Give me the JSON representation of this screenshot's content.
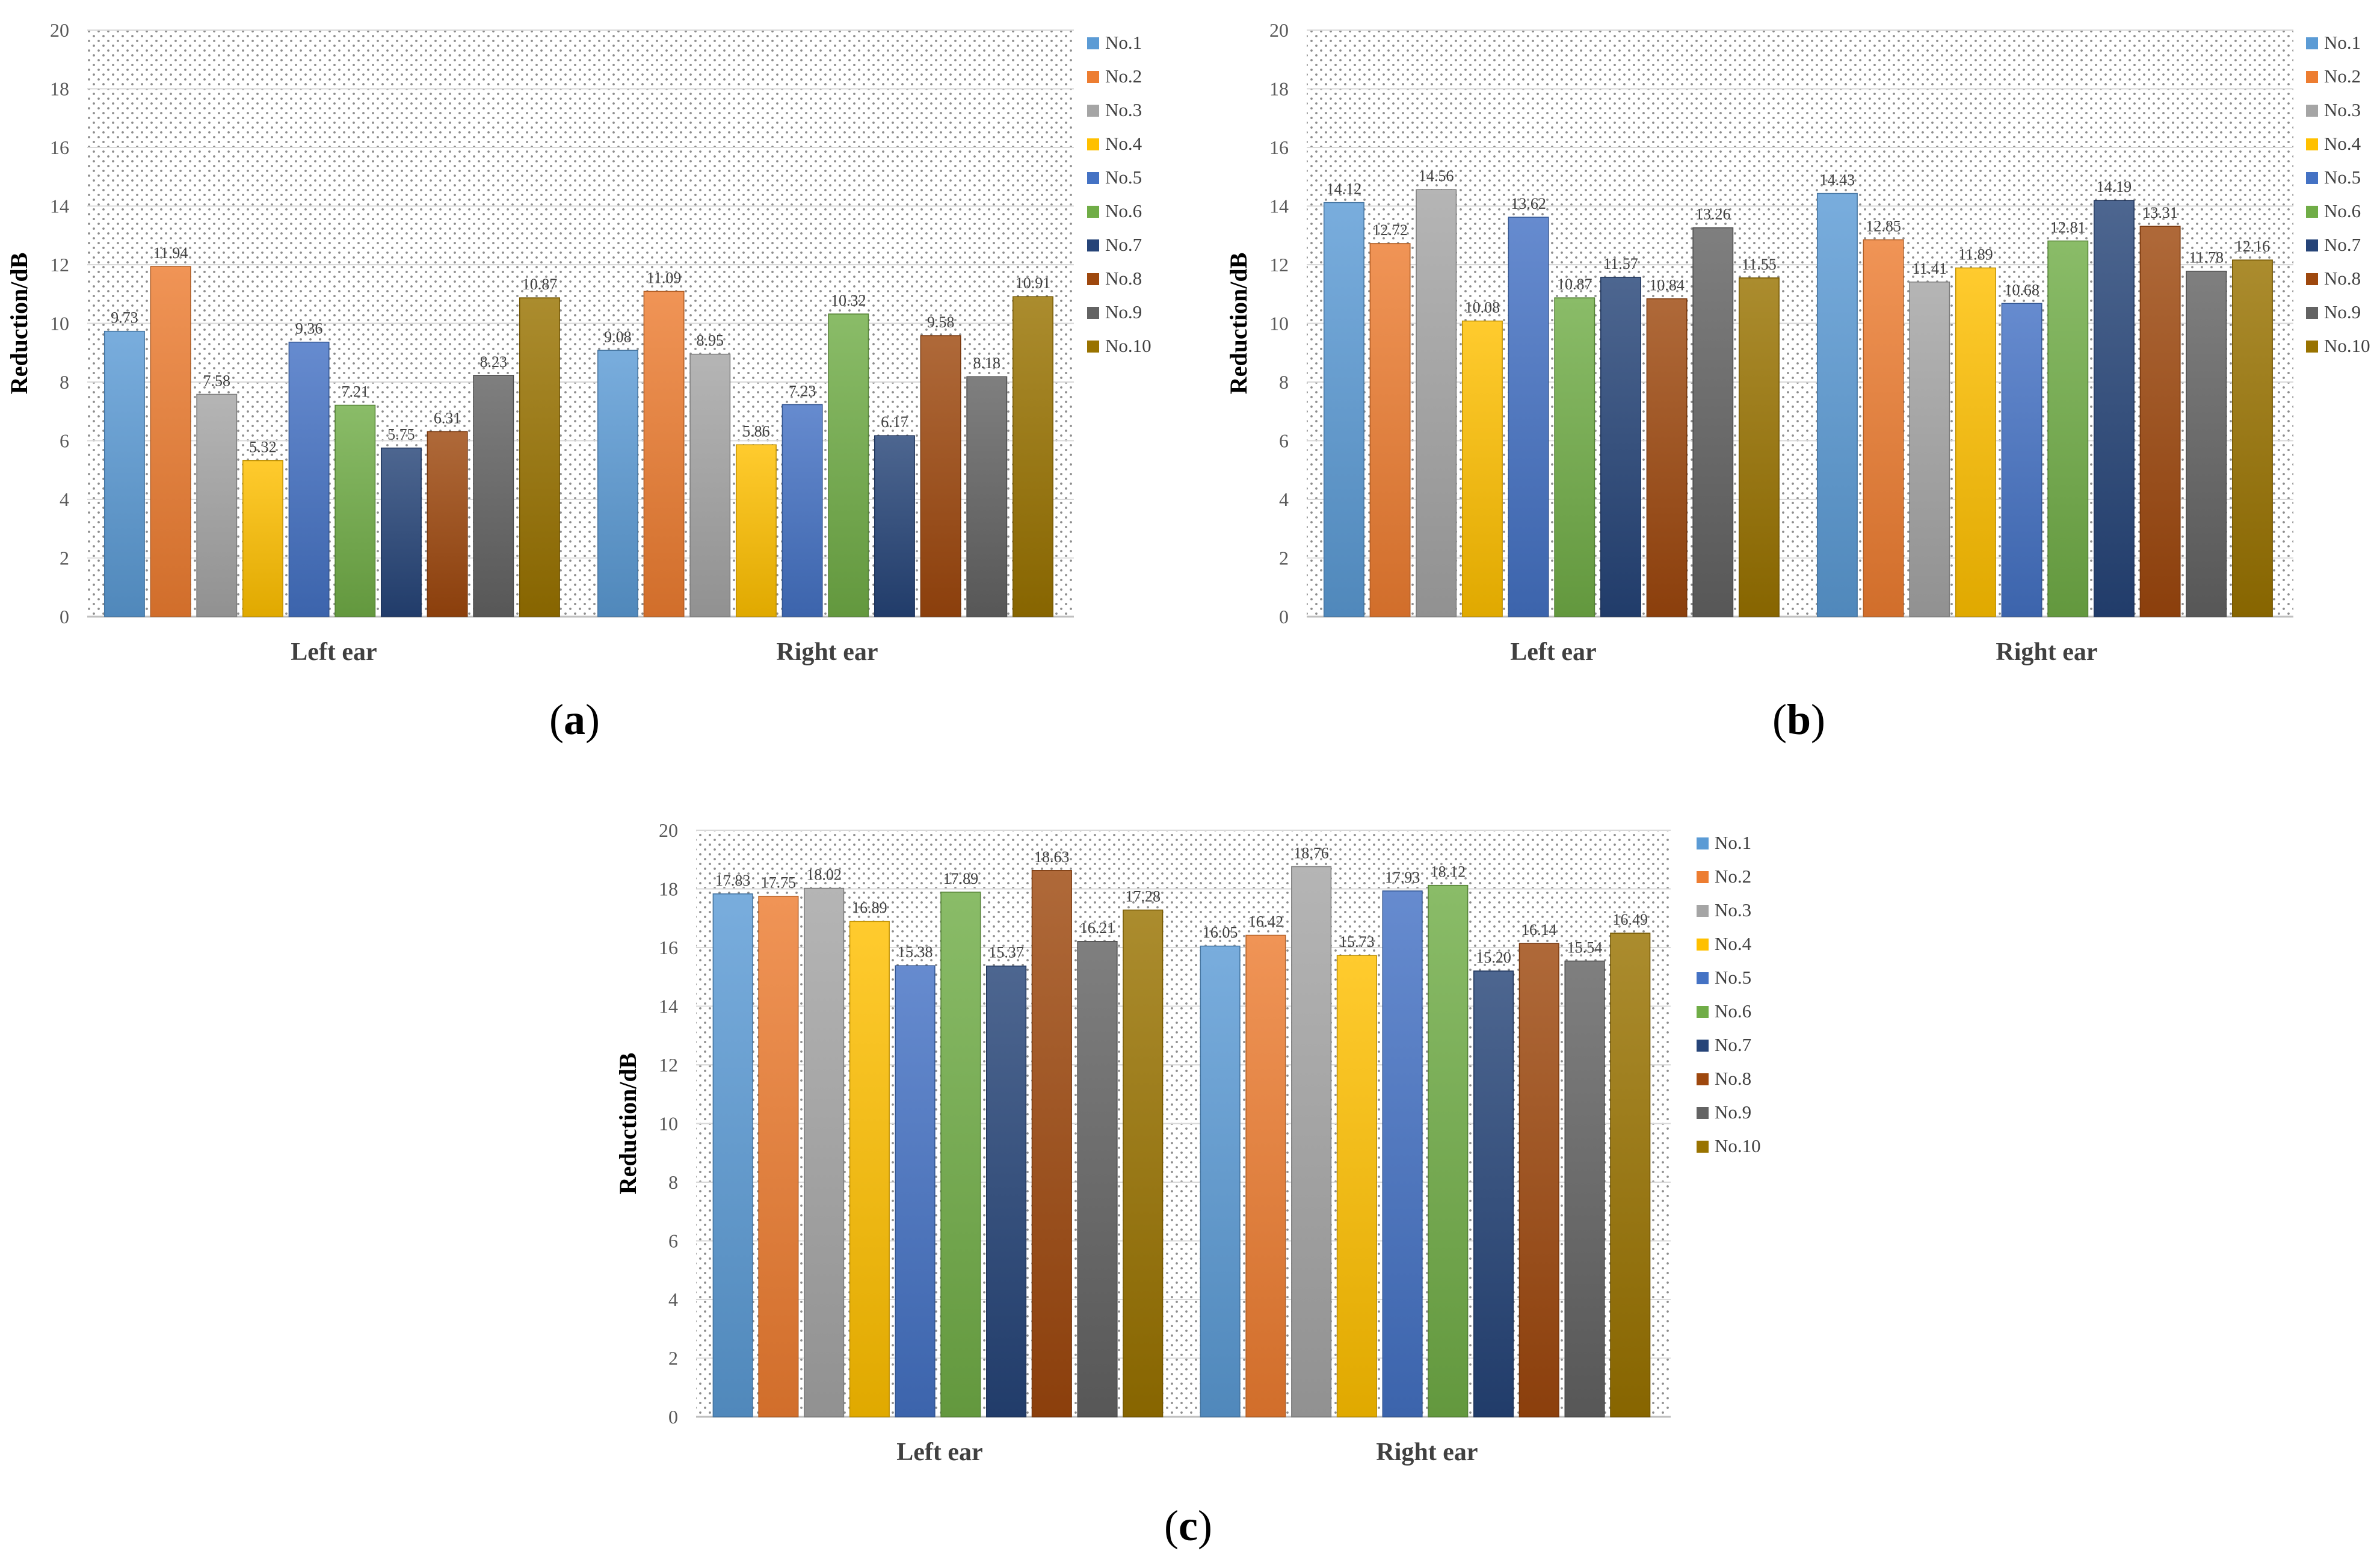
{
  "series_names": [
    "No.1",
    "No.2",
    "No.3",
    "No.4",
    "No.5",
    "No.6",
    "No.7",
    "No.8",
    "No.9",
    "No.10"
  ],
  "colors": [
    "#5b9bd5",
    "#ed7d31",
    "#a5a5a5",
    "#ffc000",
    "#4472c4",
    "#70ad47",
    "#264478",
    "#9e480e",
    "#636363",
    "#997300"
  ],
  "chart_data": [
    {
      "type": "bar",
      "panel_label": "a",
      "categories": [
        "Left ear",
        "Right ear"
      ],
      "ylabel": "Reduction/dB",
      "ylim": [
        0,
        20
      ],
      "yticks": [
        0,
        2,
        4,
        6,
        8,
        10,
        12,
        14,
        16,
        18,
        20
      ],
      "legend": "right",
      "series": [
        {
          "name": "No.1",
          "values": [
            9.73,
            9.08
          ]
        },
        {
          "name": "No.2",
          "values": [
            11.94,
            11.09
          ]
        },
        {
          "name": "No.3",
          "values": [
            7.58,
            8.95
          ]
        },
        {
          "name": "No.4",
          "values": [
            5.32,
            5.86
          ]
        },
        {
          "name": "No.5",
          "values": [
            9.36,
            7.23
          ]
        },
        {
          "name": "No.6",
          "values": [
            7.21,
            10.32
          ]
        },
        {
          "name": "No.7",
          "values": [
            5.75,
            6.17
          ]
        },
        {
          "name": "No.8",
          "values": [
            6.31,
            9.58
          ]
        },
        {
          "name": "No.9",
          "values": [
            8.23,
            8.18
          ]
        },
        {
          "name": "No.10",
          "values": [
            10.87,
            10.91
          ]
        }
      ]
    },
    {
      "type": "bar",
      "panel_label": "b",
      "categories": [
        "Left ear",
        "Right ear"
      ],
      "ylabel": "Reduction/dB",
      "ylim": [
        0,
        20
      ],
      "yticks": [
        0,
        2,
        4,
        6,
        8,
        10,
        12,
        14,
        16,
        18,
        20
      ],
      "legend": "right",
      "series": [
        {
          "name": "No.1",
          "values": [
            14.12,
            14.43
          ]
        },
        {
          "name": "No.2",
          "values": [
            12.72,
            12.85
          ]
        },
        {
          "name": "No.3",
          "values": [
            14.56,
            11.41
          ]
        },
        {
          "name": "No.4",
          "values": [
            10.08,
            11.89
          ]
        },
        {
          "name": "No.5",
          "values": [
            13.62,
            10.68
          ]
        },
        {
          "name": "No.6",
          "values": [
            10.87,
            12.81
          ]
        },
        {
          "name": "No.7",
          "values": [
            11.57,
            14.19
          ]
        },
        {
          "name": "No.8",
          "values": [
            10.84,
            13.31
          ]
        },
        {
          "name": "No.9",
          "values": [
            13.26,
            11.78
          ]
        },
        {
          "name": "No.10",
          "values": [
            11.55,
            12.16
          ]
        }
      ]
    },
    {
      "type": "bar",
      "panel_label": "c",
      "categories": [
        "Left ear",
        "Right ear"
      ],
      "ylabel": "Reduction/dB",
      "ylim": [
        0,
        20
      ],
      "yticks": [
        0,
        2,
        4,
        6,
        8,
        10,
        12,
        14,
        16,
        18,
        20
      ],
      "legend": "right",
      "series": [
        {
          "name": "No.1",
          "values": [
            17.83,
            16.05
          ]
        },
        {
          "name": "No.2",
          "values": [
            17.75,
            16.42
          ]
        },
        {
          "name": "No.3",
          "values": [
            18.02,
            18.76
          ]
        },
        {
          "name": "No.4",
          "values": [
            16.89,
            15.73
          ]
        },
        {
          "name": "No.5",
          "values": [
            15.38,
            17.93
          ]
        },
        {
          "name": "No.6",
          "values": [
            17.89,
            18.12
          ]
        },
        {
          "name": "No.7",
          "values": [
            15.37,
            15.2
          ]
        },
        {
          "name": "No.8",
          "values": [
            18.63,
            16.14
          ]
        },
        {
          "name": "No.9",
          "values": [
            16.21,
            15.54
          ]
        },
        {
          "name": "No.10",
          "values": [
            17.28,
            16.49
          ]
        }
      ]
    }
  ]
}
